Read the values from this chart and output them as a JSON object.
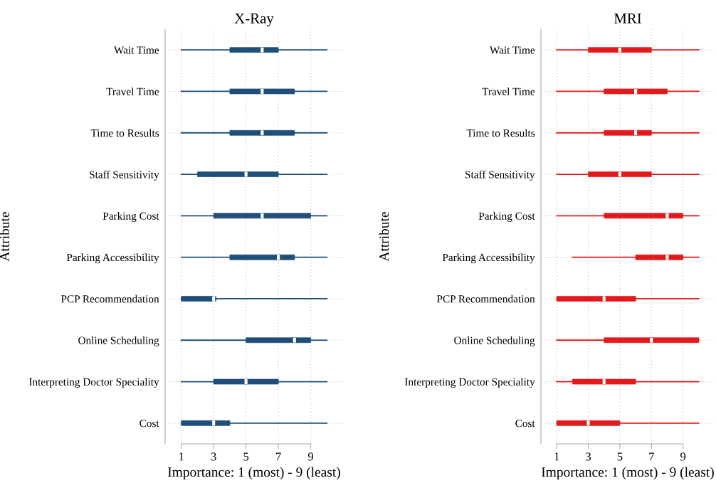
{
  "chart_data": [
    {
      "type": "box",
      "title": "X-Ray",
      "xlabel": "Importance: 1 (most) - 9 (least)",
      "ylabel": "Attribute",
      "orientation": "horizontal",
      "color": "#1f4e79",
      "xlim": [
        0,
        11
      ],
      "xticks": [
        1,
        3,
        5,
        7,
        9
      ],
      "grid": true,
      "categories": [
        "Wait Time",
        "Travel Time",
        "Time to Results",
        "Staff Sensitivity",
        "Parking Cost",
        "Parking Accessibility",
        "PCP Recommendation",
        "Online Scheduling",
        "Interpreting Doctor Speciality",
        "Cost"
      ],
      "boxes": [
        {
          "low": 1,
          "q1": 4,
          "median": 6,
          "q3": 7,
          "high": 10
        },
        {
          "low": 1,
          "q1": 4,
          "median": 6,
          "q3": 8,
          "high": 10
        },
        {
          "low": 1,
          "q1": 4,
          "median": 6,
          "q3": 8,
          "high": 10
        },
        {
          "low": 1,
          "q1": 2,
          "median": 5,
          "q3": 7,
          "high": 10
        },
        {
          "low": 1,
          "q1": 3,
          "median": 6,
          "q3": 9,
          "high": 10
        },
        {
          "low": 1,
          "q1": 4,
          "median": 7,
          "q3": 8,
          "high": 10
        },
        {
          "low": 1,
          "q1": 1,
          "median": 3,
          "q3": 3,
          "high": 10
        },
        {
          "low": 1,
          "q1": 5,
          "median": 8,
          "q3": 9,
          "high": 10
        },
        {
          "low": 1,
          "q1": 3,
          "median": 5,
          "q3": 7,
          "high": 10
        },
        {
          "low": 1,
          "q1": 1,
          "median": 3,
          "q3": 4,
          "high": 10
        }
      ]
    },
    {
      "type": "box",
      "title": "MRI",
      "xlabel": "Importance: 1 (most) - 9 (least)",
      "ylabel": "Attribute",
      "orientation": "horizontal",
      "color": "#e31a1c",
      "xlim": [
        0,
        11
      ],
      "xticks": [
        1,
        3,
        5,
        7,
        9
      ],
      "grid": true,
      "categories": [
        "Wait Time",
        "Travel Time",
        "Time to Results",
        "Staff Sensitivity",
        "Parking Cost",
        "Parking Accessibility",
        "PCP Recommendation",
        "Online Scheduling",
        "Interpreting Doctor Speciality",
        "Cost"
      ],
      "boxes": [
        {
          "low": 1,
          "q1": 3,
          "median": 5,
          "q3": 7,
          "high": 10
        },
        {
          "low": 1,
          "q1": 4,
          "median": 6,
          "q3": 8,
          "high": 10
        },
        {
          "low": 1,
          "q1": 4,
          "median": 6,
          "q3": 7,
          "high": 10
        },
        {
          "low": 1,
          "q1": 3,
          "median": 5,
          "q3": 7,
          "high": 10
        },
        {
          "low": 1,
          "q1": 4,
          "median": 8,
          "q3": 9,
          "high": 10
        },
        {
          "low": 2,
          "q1": 6,
          "median": 8,
          "q3": 9,
          "high": 10
        },
        {
          "low": 1,
          "q1": 1,
          "median": 4,
          "q3": 6,
          "high": 10
        },
        {
          "low": 1,
          "q1": 4,
          "median": 7,
          "q3": 10,
          "high": 10
        },
        {
          "low": 1,
          "q1": 2,
          "median": 4,
          "q3": 6,
          "high": 10
        },
        {
          "low": 1,
          "q1": 1,
          "median": 3,
          "q3": 5,
          "high": 10
        }
      ]
    }
  ]
}
